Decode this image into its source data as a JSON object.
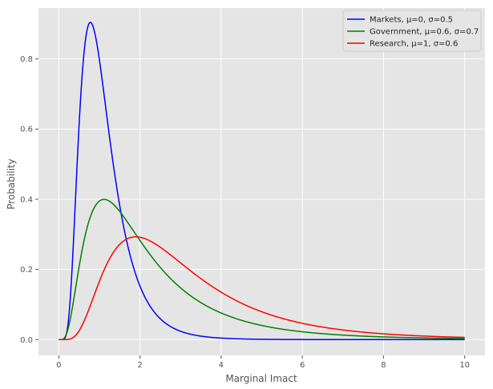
{
  "chart_data": {
    "type": "line",
    "title": "",
    "xlabel": "Marginal Imact",
    "ylabel": "Probability",
    "xlim": [
      -0.5,
      10.5
    ],
    "ylim": [
      -0.045,
      0.945
    ],
    "xticks": [
      0,
      2,
      4,
      6,
      8,
      10
    ],
    "xtick_labels": [
      "0",
      "2",
      "4",
      "6",
      "8",
      "10"
    ],
    "yticks": [
      0.0,
      0.2,
      0.4,
      0.6,
      0.8
    ],
    "ytick_labels": [
      "0.0",
      "0.2",
      "0.4",
      "0.6",
      "0.8"
    ],
    "grid": true,
    "style": "ggplot",
    "legend_position": "top-right",
    "x_range": [
      0,
      10
    ],
    "series": [
      {
        "name": "Markets, μ=0, σ=0.5",
        "color": "#0000ff",
        "distribution": "lognormal",
        "mu": 0,
        "sigma": 0.5
      },
      {
        "name": "Government, μ=0.6, σ=0.7",
        "color": "#008000",
        "distribution": "lognormal",
        "mu": 0.6,
        "sigma": 0.7
      },
      {
        "name": "Research, μ=1, σ=0.6",
        "color": "#ff0000",
        "distribution": "lognormal",
        "mu": 1,
        "sigma": 0.6
      }
    ]
  }
}
